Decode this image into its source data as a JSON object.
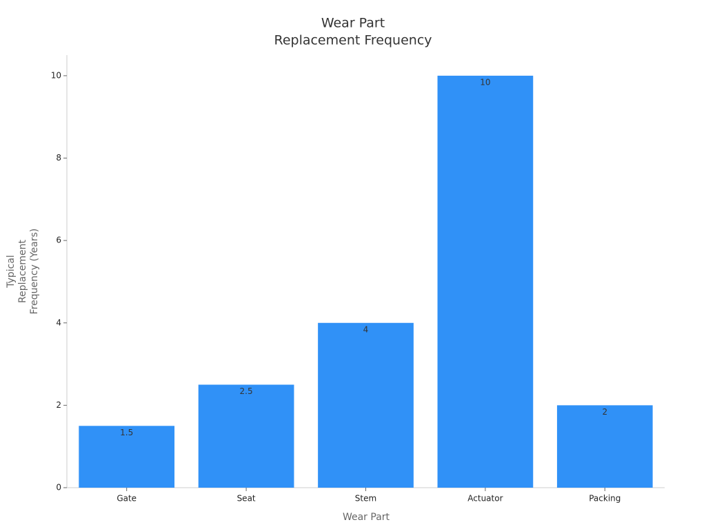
{
  "chart_data": {
    "type": "bar",
    "title": [
      "Wear Part",
      "Replacement Frequency"
    ],
    "x_label": "Wear Part",
    "y_label": [
      "Typical",
      "Replacement",
      "Frequency (Years)"
    ],
    "categories": [
      "Gate",
      "Seat",
      "Stem",
      "Actuator",
      "Packing"
    ],
    "values": [
      1.5,
      2.5,
      4,
      10,
      2
    ],
    "color": "#3091f7",
    "ylim": [
      0,
      10.5
    ],
    "yticks": [
      0,
      2,
      4,
      6,
      8,
      10
    ],
    "grid": false
  }
}
